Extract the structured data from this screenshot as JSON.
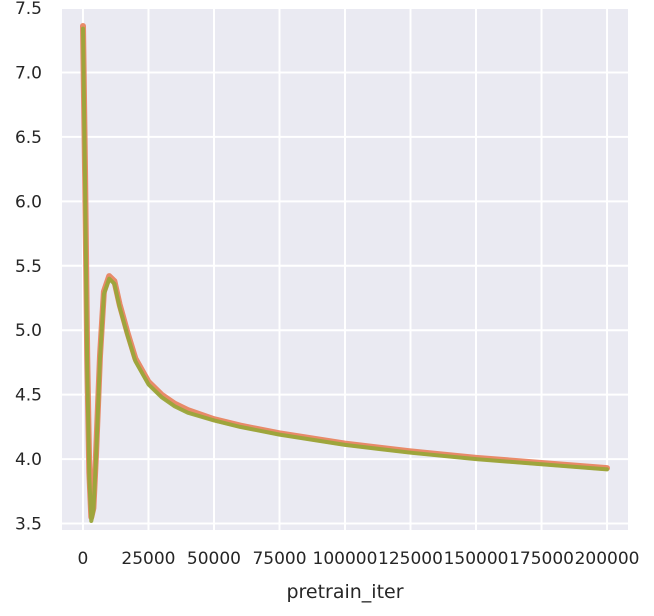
{
  "chart_data": {
    "type": "line",
    "title": "",
    "xlabel": "pretrain_iter",
    "ylabel": "",
    "xlim": [
      -8000,
      208000
    ],
    "ylim": [
      3.45,
      7.5
    ],
    "x_ticks": [
      0,
      25000,
      50000,
      75000,
      100000,
      125000,
      150000,
      175000,
      200000
    ],
    "x_tick_labels": [
      "0",
      "25000",
      "50000",
      "75000",
      "100000",
      "125000",
      "150000",
      "175000",
      "200000"
    ],
    "y_ticks": [
      3.5,
      4.0,
      4.5,
      5.0,
      5.5,
      6.0,
      6.5,
      7.0,
      7.5
    ],
    "y_tick_labels": [
      "3.5",
      "4.0",
      "4.5",
      "5.0",
      "5.5",
      "6.0",
      "6.5",
      "7.0",
      "7.5"
    ],
    "grid": true,
    "background_color": "#eaeaf2",
    "grid_color": "#ffffff",
    "series": [
      {
        "color": "#e8805a",
        "x": [
          0,
          800,
          1600,
          2400,
          3200,
          4000,
          5000,
          6500,
          8000,
          10000,
          12000,
          14000,
          17000,
          20000,
          25000,
          30000,
          35000,
          40000,
          50000,
          60000,
          75000,
          100000,
          125000,
          150000,
          175000,
          200000
        ],
        "y": [
          7.36,
          6.2,
          4.8,
          3.9,
          3.55,
          3.62,
          4.05,
          4.8,
          5.3,
          5.42,
          5.38,
          5.2,
          4.98,
          4.78,
          4.6,
          4.5,
          4.43,
          4.38,
          4.31,
          4.26,
          4.2,
          4.12,
          4.06,
          4.01,
          3.97,
          3.93
        ]
      },
      {
        "color": "#9aa63a",
        "x": [
          0,
          800,
          1600,
          2400,
          3200,
          4000,
          5000,
          6500,
          8000,
          10000,
          12000,
          14000,
          17000,
          20000,
          25000,
          30000,
          35000,
          40000,
          50000,
          60000,
          75000,
          100000,
          125000,
          150000,
          175000,
          200000
        ],
        "y": [
          7.34,
          6.1,
          4.7,
          3.85,
          3.52,
          3.6,
          4.02,
          4.78,
          5.28,
          5.4,
          5.36,
          5.18,
          4.96,
          4.76,
          4.58,
          4.48,
          4.41,
          4.36,
          4.3,
          4.25,
          4.19,
          4.11,
          4.05,
          4.0,
          3.96,
          3.92
        ]
      }
    ]
  }
}
